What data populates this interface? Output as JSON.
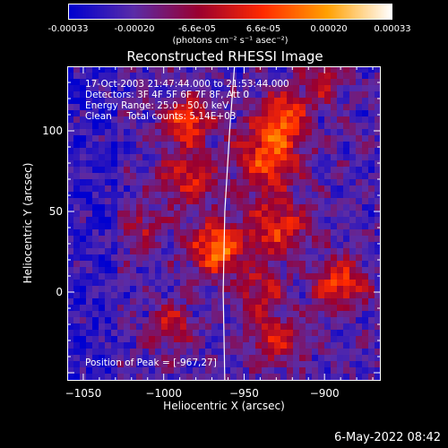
{
  "colorbar": {
    "ticks": [
      "-0.00033",
      "-0.00020",
      "-6.6e-05",
      "6.6e-05",
      "0.00020",
      "0.00033"
    ],
    "unit": "(photons cm⁻² s⁻¹ asec⁻²)",
    "colors": [
      "#0000d0",
      "#5a2ca8",
      "#9a0030",
      "#ff2a00",
      "#ffa000",
      "#ffffff"
    ]
  },
  "chart_data": {
    "type": "heatmap",
    "title": "Reconstructed RHESSI Image",
    "xlabel": "Heliocentric X (arcsec)",
    "ylabel": "Heliocentric Y (arcsec)",
    "xlim": [
      -1060,
      -865
    ],
    "ylim": [
      -55,
      140
    ],
    "x_ticks": [
      -1050,
      -1000,
      -950,
      -900
    ],
    "y_ticks": [
      0,
      50,
      100
    ],
    "x_tick_labels": [
      "−1050",
      "−1000",
      "−950",
      "−900"
    ],
    "y_tick_labels": [
      "0",
      "50",
      "100"
    ],
    "color_range": [
      -0.00033,
      0.00033
    ],
    "limb_line": [
      [
        -962,
        -55
      ],
      [
        -963,
        0
      ],
      [
        -962,
        50
      ],
      [
        -959,
        100
      ],
      [
        -956,
        140
      ]
    ],
    "bright_sources": [
      {
        "x": -967,
        "y": 27,
        "amp": 1.0,
        "r": 11
      },
      {
        "x": -985,
        "y": 105,
        "amp": 0.8,
        "r": 10
      },
      {
        "x": -935,
        "y": 85,
        "amp": 0.85,
        "r": 14
      },
      {
        "x": -925,
        "y": 110,
        "amp": 0.75,
        "r": 10
      },
      {
        "x": -930,
        "y": 40,
        "amp": 0.7,
        "r": 13
      },
      {
        "x": -940,
        "y": 0,
        "amp": 0.55,
        "r": 10
      },
      {
        "x": -985,
        "y": 70,
        "amp": 0.6,
        "r": 12
      },
      {
        "x": -890,
        "y": 5,
        "amp": 0.75,
        "r": 11
      },
      {
        "x": -995,
        "y": -20,
        "amp": 0.55,
        "r": 9
      },
      {
        "x": -930,
        "y": -30,
        "amp": 0.6,
        "r": 11
      },
      {
        "x": -1015,
        "y": 40,
        "amp": 0.4,
        "r": 10
      },
      {
        "x": -900,
        "y": 130,
        "amp": 0.5,
        "r": 9
      }
    ],
    "annotations": [
      "17-Oct-2003 21:47:44.000 to 21:53:44.000",
      "Detectors: 3F 4F 5F 6F 7F 8F, Att 0",
      "Energy Range: 25.0 - 50.0 keV",
      "Clean     Total counts: 5.14E+03"
    ],
    "peak_label": "Position of Peak = [-967,27]"
  },
  "footer": {
    "date": "6-May-2022 08:42"
  }
}
